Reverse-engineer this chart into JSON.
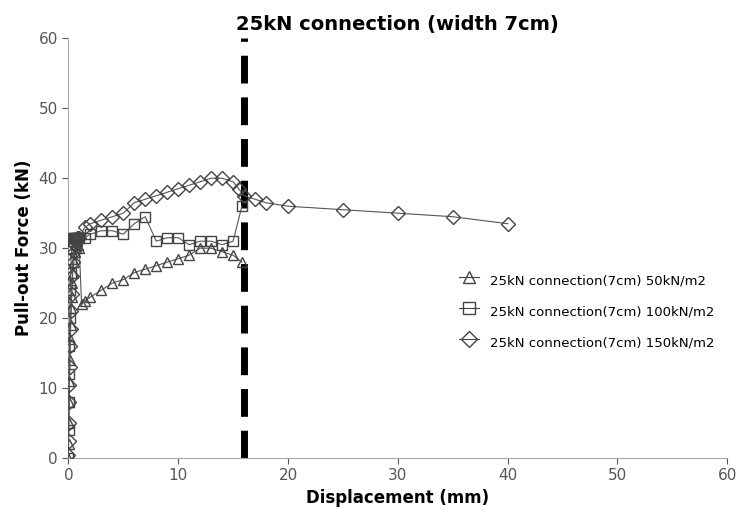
{
  "title": "25kN connection (width 7cm)",
  "xlabel": "Displacement (mm)",
  "ylabel": "Pull-out Force (kN)",
  "xlim": [
    0,
    60
  ],
  "ylim": [
    0,
    60
  ],
  "xticks": [
    0,
    10,
    20,
    30,
    40,
    50,
    60
  ],
  "yticks": [
    0,
    10,
    20,
    30,
    40,
    50,
    60
  ],
  "dashed_line_x": 16,
  "series": [
    {
      "label": "25kN connection(7cm) 50kN/m2",
      "marker": "^",
      "x": [
        0.0,
        0.02,
        0.04,
        0.07,
        0.1,
        0.13,
        0.17,
        0.2,
        0.25,
        0.3,
        0.35,
        0.4,
        0.5,
        0.6,
        0.7,
        0.8,
        0.9,
        1.0,
        1.2,
        1.5,
        2.0,
        3.0,
        4.0,
        5.0,
        6.0,
        7.0,
        8.0,
        9.0,
        10.0,
        11.0,
        12.0,
        13.0,
        14.0,
        15.0,
        15.8
      ],
      "y": [
        0.0,
        2.0,
        5.0,
        8.0,
        11.0,
        14.0,
        17.0,
        19.0,
        21.5,
        23.0,
        25.0,
        26.5,
        28.0,
        29.5,
        30.5,
        31.0,
        30.5,
        30.0,
        22.0,
        22.5,
        23.0,
        24.0,
        25.0,
        25.5,
        26.5,
        27.0,
        27.5,
        28.0,
        28.5,
        29.0,
        30.0,
        30.0,
        29.5,
        29.0,
        28.0
      ]
    },
    {
      "label": "25kN connection(7cm) 100kN/m2",
      "marker": "s",
      "x": [
        0.0,
        0.02,
        0.04,
        0.07,
        0.1,
        0.13,
        0.17,
        0.2,
        0.25,
        0.3,
        0.35,
        0.4,
        0.5,
        0.6,
        0.7,
        0.8,
        0.9,
        1.0,
        1.5,
        2.0,
        3.0,
        4.0,
        5.0,
        6.0,
        7.0,
        8.0,
        9.0,
        10.0,
        11.0,
        12.0,
        13.0,
        14.0,
        15.0,
        15.8
      ],
      "y": [
        0.0,
        4.0,
        8.0,
        12.0,
        16.0,
        20.0,
        24.0,
        26.5,
        28.5,
        30.0,
        31.0,
        31.5,
        31.5,
        31.5,
        31.5,
        31.5,
        31.5,
        31.5,
        31.5,
        32.0,
        32.5,
        32.5,
        32.0,
        33.5,
        34.5,
        31.0,
        31.5,
        31.5,
        30.5,
        31.0,
        31.0,
        30.5,
        31.0,
        36.0
      ]
    },
    {
      "label": "25kN connection(7cm) 150kN/m2",
      "marker": "D",
      "x": [
        0.0,
        0.02,
        0.04,
        0.07,
        0.1,
        0.13,
        0.17,
        0.2,
        0.25,
        0.3,
        0.35,
        0.4,
        0.5,
        0.6,
        0.7,
        0.8,
        0.9,
        1.0,
        1.5,
        2.0,
        3.0,
        4.0,
        5.0,
        6.0,
        7.0,
        8.0,
        9.0,
        10.0,
        11.0,
        12.0,
        13.0,
        14.0,
        15.0,
        15.5,
        16.0,
        17.0,
        18.0,
        20.0,
        25.0,
        30.0,
        35.0,
        40.0
      ],
      "y": [
        0.5,
        2.5,
        5.0,
        8.0,
        10.5,
        13.0,
        16.0,
        18.5,
        21.0,
        23.5,
        26.0,
        28.0,
        29.5,
        30.5,
        31.0,
        31.5,
        31.5,
        31.5,
        33.0,
        33.5,
        34.0,
        34.5,
        35.0,
        36.5,
        37.0,
        37.5,
        38.0,
        38.5,
        39.0,
        39.5,
        40.0,
        40.0,
        39.5,
        38.5,
        37.5,
        37.0,
        36.5,
        36.0,
        35.5,
        35.0,
        34.5,
        33.5
      ]
    }
  ],
  "legend_entries": [
    "25kN connection(7cm) 50kN/m2",
    "25kN connection(7cm) 100kN/m2",
    "25kN connection(7cm) 150kN/m2"
  ],
  "markers": [
    "^",
    "s",
    "D"
  ],
  "background_color": "#ffffff",
  "title_fontsize": 14,
  "label_fontsize": 12,
  "tick_fontsize": 11
}
